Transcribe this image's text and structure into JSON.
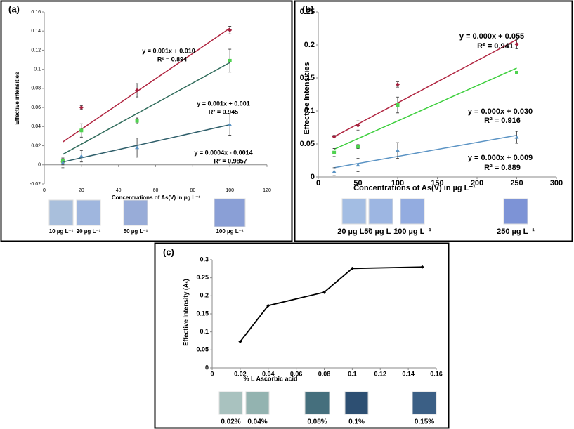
{
  "chart_data": [
    {
      "type": "scatter",
      "title": "(a)",
      "x_label": "Concentrations of As(V) in µg L⁻¹",
      "y_label": "Effective intensities",
      "xlim": [
        0,
        120
      ],
      "xticks": [
        0,
        20,
        40,
        60,
        80,
        100,
        120
      ],
      "ylim": [
        -0.02,
        0.16
      ],
      "yticks": [
        -0.02,
        0,
        0.02,
        0.04,
        0.06,
        0.08,
        0.1,
        0.12,
        0.14,
        0.16
      ],
      "x": [
        10,
        20,
        50,
        100
      ],
      "series": [
        {
          "color": "#a3203d",
          "line_color": "#b0243f",
          "marker": "diamond",
          "values": [
            0.003,
            0.06,
            0.078,
            0.141
          ],
          "errors": [
            0.003,
            0.002,
            0.007,
            0.004
          ],
          "trend": [
            0.024,
            0.143
          ]
        },
        {
          "color": "#4fd24f",
          "line_color": "#2f6b5b",
          "marker": "square",
          "values": [
            0.004,
            0.036,
            0.046,
            0.109
          ],
          "errors": [
            0.004,
            0.007,
            0.003,
            0.012
          ],
          "trend": [
            0.011,
            0.107
          ]
        },
        {
          "color": "#5a93c4",
          "line_color": "#2e5e6a",
          "marker": "triangle",
          "values": [
            0.002,
            0.009,
            0.018,
            0.042
          ],
          "errors": [
            0.005,
            0.006,
            0.01,
            0.011
          ],
          "trend": [
            0.003,
            0.042
          ]
        }
      ],
      "annotations": [
        "y = 0.001x + 0.010",
        "R² = 0.894",
        "y = 0.001x + 0.001",
        "R² = 0.945",
        "y = 0.0004x - 0.0014",
        "R² = 0.9857"
      ],
      "swatches": [
        "10 µg L⁻¹",
        "20 µg L⁻¹",
        "50 µg L⁻¹",
        "100 µg L⁻¹"
      ],
      "swatch_colors": [
        "#a9bfdc",
        "#9fb6de",
        "#98acd8",
        "#8a9fd6"
      ]
    },
    {
      "type": "scatter",
      "title": "(b)",
      "x_label": "Concentrations of As(V) in µg L⁻¹",
      "y_label": "Effective Intensities",
      "xlim": [
        0,
        300
      ],
      "xticks": [
        0,
        50,
        100,
        150,
        200,
        250,
        300
      ],
      "ylim": [
        0,
        0.25
      ],
      "yticks": [
        0,
        0.05,
        0.1,
        0.15,
        0.2,
        0.25
      ],
      "x": [
        20,
        50,
        100,
        250
      ],
      "series": [
        {
          "color": "#a3203d",
          "line_color": "#b0243f",
          "marker": "diamond",
          "values": [
            0.061,
            0.078,
            0.14,
            0.201
          ],
          "errors": [
            0.002,
            0.007,
            0.004,
            0.007
          ],
          "trend": [
            0.061,
            0.208
          ]
        },
        {
          "color": "#4fd24f",
          "line_color": "#3ccf3c",
          "marker": "square",
          "values": [
            0.037,
            0.046,
            0.109,
            0.158
          ],
          "errors": [
            0.006,
            0.003,
            0.012,
            0.002
          ],
          "trend": [
            0.042,
            0.165
          ]
        },
        {
          "color": "#5a93c4",
          "line_color": "#5a93c4",
          "marker": "triangle",
          "values": [
            0.008,
            0.018,
            0.04,
            0.06
          ],
          "errors": [
            0.006,
            0.01,
            0.012,
            0.009
          ],
          "trend": [
            0.014,
            0.063
          ]
        }
      ],
      "annotations": [
        "y = 0.000x + 0.055",
        "R² = 0.941",
        "y = 0.000x + 0.030",
        "R² = 0.916",
        "y = 0.000x + 0.009",
        "R² = 0.889"
      ],
      "swatches": [
        "20 µg L⁻¹",
        "50 µg L⁻¹",
        "100 µg L⁻¹",
        "250 µg L⁻¹"
      ],
      "swatch_colors": [
        "#a3bde3",
        "#9db6e2",
        "#93ace0",
        "#7d93d6"
      ]
    },
    {
      "type": "line",
      "title": "(c)",
      "x_label": "% L Ascorbic acid",
      "y_label": "Effective Intensity (Aₛ)",
      "xlim": [
        0,
        0.16
      ],
      "xticks": [
        0,
        0.02,
        0.04,
        0.06,
        0.08,
        0.1,
        0.12,
        0.14,
        0.16
      ],
      "ylim": [
        0,
        0.3
      ],
      "yticks": [
        0,
        0.05,
        0.1,
        0.15,
        0.2,
        0.25,
        0.3
      ],
      "x": [
        0.02,
        0.04,
        0.08,
        0.1,
        0.15
      ],
      "series": [
        {
          "color": "#000000",
          "values": [
            0.073,
            0.173,
            0.21,
            0.276,
            0.28
          ]
        }
      ],
      "swatches": [
        "0.02%",
        "0.04%",
        "0.08%",
        "0.1%",
        "0.15%"
      ],
      "swatch_colors": [
        "#a9c2bf",
        "#93b3b0",
        "#456f7d",
        "#2d4f72",
        "#3b5f85"
      ]
    }
  ]
}
